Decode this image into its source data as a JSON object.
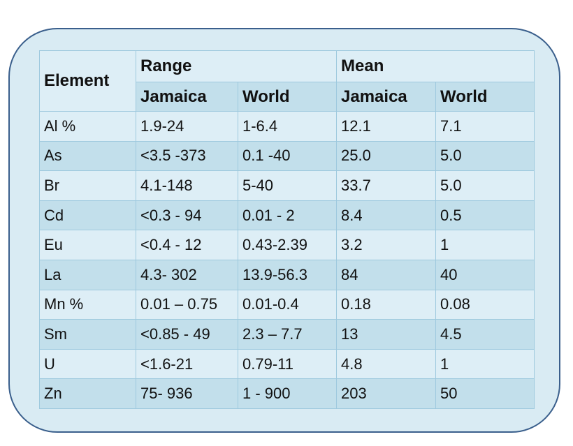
{
  "chart_data": {
    "type": "table",
    "header": {
      "element": "Element",
      "range": "Range",
      "mean": "Mean",
      "jamaica": "Jamaica",
      "world": "World"
    },
    "rows": [
      {
        "element": "Al %",
        "range_jamaica": "1.9-24",
        "range_world": "1-6.4",
        "mean_jamaica": "12.1",
        "mean_world": "7.1"
      },
      {
        "element": "As",
        "range_jamaica": "<3.5 -373",
        "range_world": "0.1 -40",
        "mean_jamaica": "25.0",
        "mean_world": "5.0"
      },
      {
        "element": "Br",
        "range_jamaica": "4.1-148",
        "range_world": "5-40",
        "mean_jamaica": "33.7",
        "mean_world": "5.0"
      },
      {
        "element": "Cd",
        "range_jamaica": "<0.3 - 94",
        "range_world": "0.01 - 2",
        "mean_jamaica": "8.4",
        "mean_world": "0.5"
      },
      {
        "element": "Eu",
        "range_jamaica": "<0.4 - 12",
        "range_world": "0.43-2.39",
        "mean_jamaica": "3.2",
        "mean_world": "1"
      },
      {
        "element": "La",
        "range_jamaica": "4.3- 302",
        "range_world": "13.9-56.3",
        "mean_jamaica": "84",
        "mean_world": "40"
      },
      {
        "element": "Mn %",
        "range_jamaica": "0.01 – 0.75",
        "range_world": "0.01-0.4",
        "mean_jamaica": "0.18",
        "mean_world": "0.08"
      },
      {
        "element": "Sm",
        "range_jamaica": "<0.85 - 49",
        "range_world": "2.3 – 7.7",
        "mean_jamaica": "13",
        "mean_world": "4.5"
      },
      {
        "element": "U",
        "range_jamaica": "<1.6-21",
        "range_world": "0.79-11",
        "mean_jamaica": "4.8",
        "mean_world": "1"
      },
      {
        "element": "Zn",
        "range_jamaica": "75- 936",
        "range_world": "1 - 900",
        "mean_jamaica": "203",
        "mean_world": "50"
      }
    ]
  }
}
